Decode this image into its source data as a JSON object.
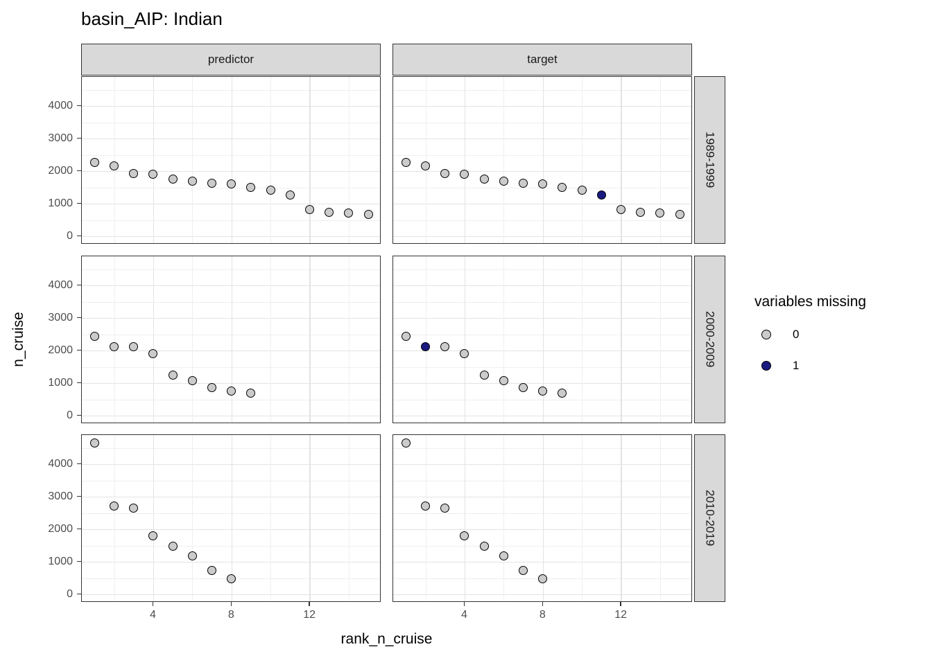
{
  "title": "basin_AIP: Indian",
  "facets": {
    "columns": [
      "predictor",
      "target"
    ],
    "rows": [
      "1989-1999",
      "2000-2009",
      "2010-2019"
    ]
  },
  "axes": {
    "x_title": "rank_n_cruise",
    "y_title": "n_cruise",
    "x_ticks": [
      4,
      8,
      12
    ],
    "x_gridlines_minor": [
      2,
      6,
      10,
      14
    ],
    "y_ticks": [
      0,
      1000,
      2000,
      3000,
      4000
    ],
    "y_gridlines_minor": [
      500,
      1500,
      2500,
      3500,
      4500
    ]
  },
  "legend": {
    "title": "variables missing",
    "entries": [
      {
        "label": "0",
        "color": "#CBCBCB"
      },
      {
        "label": "1",
        "color": "#1A1A80"
      }
    ]
  },
  "style": {
    "point_outline": "#000000",
    "panel_border": "#333333",
    "strip_bg": "#D9D9D9",
    "grid_major": "#E3E3E3",
    "grid_minor": "#EFEFEF",
    "axis_text": "#4D4D4D",
    "tick_mark": "#333333"
  },
  "chart_data": {
    "type": "scatter",
    "x_var": "rank_n_cruise",
    "y_var": "n_cruise",
    "color_var": "variables missing",
    "x_axis_range": [
      0.3,
      15.7
    ],
    "y_axis_range": [
      0,
      4900
    ],
    "panels": [
      {
        "col": "predictor",
        "row": "1989-1999",
        "x": [
          1,
          2,
          3,
          4,
          5,
          6,
          7,
          8,
          9,
          10,
          11,
          12,
          13,
          14,
          15
        ],
        "y": [
          2270,
          2160,
          1915,
          1900,
          1745,
          1695,
          1635,
          1610,
          1490,
          1420,
          1270,
          825,
          740,
          710,
          670
        ],
        "missing": [
          0,
          0,
          0,
          0,
          0,
          0,
          0,
          0,
          0,
          0,
          0,
          0,
          0,
          0,
          0
        ]
      },
      {
        "col": "target",
        "row": "1989-1999",
        "x": [
          1,
          2,
          3,
          4,
          5,
          6,
          7,
          8,
          9,
          10,
          11,
          12,
          13,
          14,
          15
        ],
        "y": [
          2270,
          2160,
          1915,
          1900,
          1745,
          1695,
          1635,
          1610,
          1490,
          1420,
          1270,
          825,
          740,
          710,
          670
        ],
        "missing": [
          0,
          0,
          0,
          0,
          0,
          0,
          0,
          0,
          0,
          0,
          1,
          0,
          0,
          0,
          0
        ]
      },
      {
        "col": "predictor",
        "row": "2000-2009",
        "x": [
          1,
          2,
          3,
          4,
          5,
          6,
          7,
          8,
          9
        ],
        "y": [
          2440,
          2120,
          2110,
          1900,
          1250,
          1070,
          855,
          750,
          700
        ],
        "missing": [
          0,
          0,
          0,
          0,
          0,
          0,
          0,
          0,
          0
        ]
      },
      {
        "col": "target",
        "row": "2000-2009",
        "x": [
          1,
          2,
          3,
          4,
          5,
          6,
          7,
          8,
          9
        ],
        "y": [
          2440,
          2120,
          2110,
          1900,
          1250,
          1070,
          855,
          750,
          700
        ],
        "missing": [
          0,
          1,
          0,
          0,
          0,
          0,
          0,
          0,
          0
        ]
      },
      {
        "col": "predictor",
        "row": "2010-2019",
        "x": [
          1,
          2,
          3,
          4,
          5,
          6,
          7,
          8
        ],
        "y": [
          4650,
          2710,
          2650,
          1800,
          1470,
          1180,
          740,
          470
        ],
        "missing": [
          0,
          0,
          0,
          0,
          0,
          0,
          0,
          0
        ]
      },
      {
        "col": "target",
        "row": "2010-2019",
        "x": [
          1,
          2,
          3,
          4,
          5,
          6,
          7,
          8
        ],
        "y": [
          4650,
          2710,
          2650,
          1800,
          1470,
          1180,
          740,
          470
        ],
        "missing": [
          0,
          0,
          0,
          0,
          0,
          0,
          0,
          0
        ]
      }
    ]
  }
}
